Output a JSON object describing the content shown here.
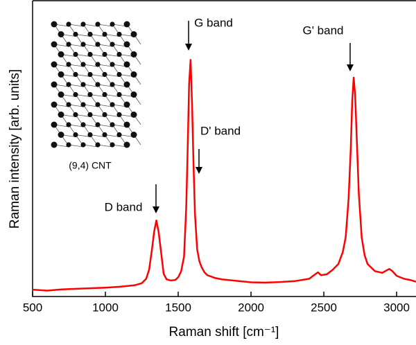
{
  "chart_data": {
    "type": "line",
    "x_label": "Raman shift [cm⁻¹]",
    "y_label": "Raman intensity [arb. units]",
    "inset_label": "(9,4) CNT",
    "annotations": [
      "D band",
      "G band",
      "D' band",
      "G' band"
    ],
    "color": "#ff0000",
    "xlim": [
      500,
      3133
    ],
    "xticks": [
      500,
      1000,
      1500,
      2000,
      2500,
      3000
    ],
    "ylim": [
      0,
      100
    ],
    "x": [
      500,
      600,
      700,
      800,
      900,
      1000,
      1100,
      1200,
      1250,
      1280,
      1300,
      1320,
      1335,
      1350,
      1365,
      1380,
      1400,
      1420,
      1450,
      1480,
      1500,
      1520,
      1540,
      1555,
      1565,
      1575,
      1585,
      1595,
      1605,
      1615,
      1630,
      1645,
      1660,
      1680,
      1700,
      1750,
      1800,
      1900,
      2000,
      2100,
      2200,
      2300,
      2400,
      2440,
      2460,
      2480,
      2520,
      2560,
      2600,
      2630,
      2650,
      2670,
      2685,
      2695,
      2705,
      2715,
      2725,
      2740,
      2760,
      2780,
      2800,
      2850,
      2900,
      2930,
      2950,
      2970,
      3000,
      3050,
      3100,
      3133
    ],
    "values": [
      2.3,
      2.0,
      2.4,
      2.6,
      2.8,
      3.0,
      3.3,
      3.8,
      4.5,
      6.0,
      9.0,
      16.0,
      22.0,
      25.7,
      22.0,
      16.0,
      7.7,
      5.8,
      5.4,
      5.6,
      6.5,
      8.5,
      13.5,
      30.0,
      50.0,
      72.0,
      80.0,
      65.0,
      45.0,
      28.0,
      16.0,
      12.0,
      10.0,
      8.2,
      7.2,
      6.3,
      5.8,
      5.3,
      4.8,
      4.7,
      4.9,
      5.2,
      6.0,
      7.5,
      8.2,
      7.2,
      7.5,
      9.0,
      11.0,
      15.0,
      20.0,
      33.0,
      50.0,
      66.0,
      74.0,
      68.0,
      55.0,
      35.0,
      20.0,
      14.0,
      11.0,
      8.6,
      8.0,
      8.8,
      9.3,
      8.6,
      7.0,
      6.0,
      5.5,
      5.0
    ]
  }
}
